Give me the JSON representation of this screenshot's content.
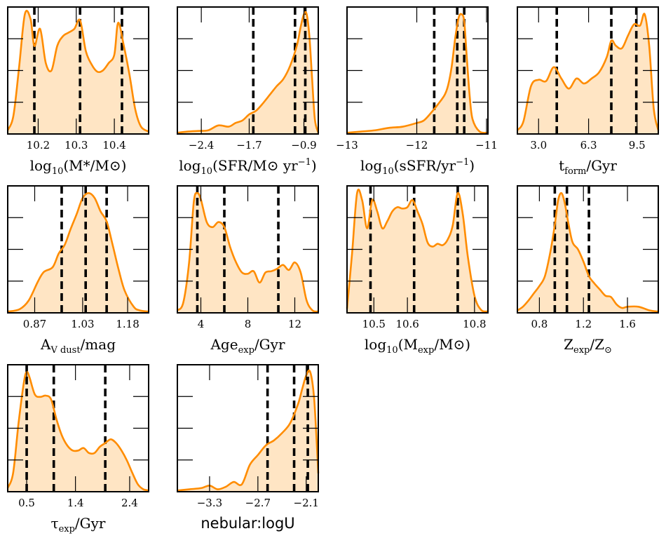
{
  "chart_data": [
    {
      "type": "area",
      "xlabel": "log10(M*/M⊙)",
      "xlabel_parts": {
        "pre": "log",
        "sub": "10",
        "post": "(M*/M⊙)"
      },
      "xlim": [
        10.12,
        10.49
      ],
      "xticks": [
        "10.2",
        "10.3",
        "10.4"
      ],
      "percentiles": [
        10.19,
        10.31,
        10.42
      ],
      "x": [
        10.12,
        10.135,
        10.15,
        10.165,
        10.18,
        10.19,
        10.205,
        10.22,
        10.235,
        10.25,
        10.265,
        10.28,
        10.295,
        10.31,
        10.325,
        10.34,
        10.355,
        10.37,
        10.385,
        10.4,
        10.41,
        10.425,
        10.44,
        10.455,
        10.47,
        10.49
      ],
      "y": [
        0.03,
        0.15,
        0.55,
        0.98,
        0.94,
        0.72,
        0.86,
        0.58,
        0.52,
        0.72,
        0.8,
        0.83,
        0.86,
        0.93,
        0.68,
        0.57,
        0.51,
        0.52,
        0.58,
        0.65,
        0.91,
        0.72,
        0.48,
        0.2,
        0.06,
        0.02
      ]
    },
    {
      "type": "area",
      "xlabel": "log10(SFR/M⊙ yr−1)",
      "xlabel_parts": {
        "pre": "log",
        "sub": "10",
        "post": "(SFR/M⊙ yr",
        "sup": "−1",
        "end": ")"
      },
      "xlim": [
        -2.75,
        -0.69
      ],
      "xticks": [
        "−2.4",
        "−1.7",
        "−0.9"
      ],
      "percentiles": [
        -1.64,
        -1.03,
        -0.88
      ],
      "x": [
        -2.75,
        -2.6,
        -2.45,
        -2.3,
        -2.15,
        -2.0,
        -1.9,
        -1.8,
        -1.7,
        -1.6,
        -1.5,
        -1.4,
        -1.3,
        -1.2,
        -1.1,
        -1.0,
        -0.95,
        -0.9,
        -0.86,
        -0.82,
        -0.78,
        -0.74,
        -0.69
      ],
      "y": [
        0.01,
        0.02,
        0.025,
        0.03,
        0.07,
        0.06,
        0.09,
        0.11,
        0.16,
        0.19,
        0.25,
        0.32,
        0.39,
        0.45,
        0.56,
        0.73,
        0.87,
        0.98,
        0.98,
        0.8,
        0.45,
        0.12,
        0.01
      ]
    },
    {
      "type": "area",
      "xlabel": "log10(sSFR/yr−1)",
      "xlabel_parts": {
        "pre": "log",
        "sub": "10",
        "post": "(sSFR/yr",
        "sup": "−1",
        "end": ")"
      },
      "xlim": [
        -13.0,
        -10.98
      ],
      "xticks": [
        "−13",
        "−12",
        "−11"
      ],
      "percentiles": [
        -11.75,
        -11.42,
        -11.32
      ],
      "x": [
        -13.0,
        -12.8,
        -12.6,
        -12.4,
        -12.2,
        -12.0,
        -11.9,
        -11.8,
        -11.7,
        -11.6,
        -11.55,
        -11.5,
        -11.45,
        -11.4,
        -11.36,
        -11.32,
        -11.28,
        -11.24,
        -11.2,
        -11.1,
        -10.98
      ],
      "y": [
        0.01,
        0.02,
        0.03,
        0.05,
        0.06,
        0.09,
        0.11,
        0.17,
        0.24,
        0.32,
        0.4,
        0.55,
        0.78,
        0.95,
        0.98,
        0.92,
        0.6,
        0.3,
        0.12,
        0.02,
        0.01
      ]
    },
    {
      "type": "area",
      "xlabel": "tform/Gyr",
      "xlabel_parts": {
        "pre": "t",
        "sub": "form",
        "post": "/Gyr"
      },
      "xlim": [
        1.6,
        10.9
      ],
      "xticks": [
        "3.0",
        "6.3",
        "9.5"
      ],
      "percentiles": [
        4.2,
        7.8,
        9.45
      ],
      "x": [
        1.6,
        2.0,
        2.5,
        3.0,
        3.5,
        4.0,
        4.5,
        5.0,
        5.5,
        6.0,
        6.5,
        7.0,
        7.5,
        7.8,
        8.1,
        8.5,
        8.9,
        9.3,
        9.7,
        10.0,
        10.3,
        10.6,
        10.9
      ],
      "y": [
        0.03,
        0.1,
        0.38,
        0.43,
        0.42,
        0.53,
        0.44,
        0.36,
        0.44,
        0.4,
        0.44,
        0.49,
        0.61,
        0.74,
        0.7,
        0.68,
        0.78,
        0.87,
        0.86,
        0.95,
        0.7,
        0.2,
        0.03
      ]
    },
    {
      "type": "area",
      "xlabel": "AV dust/mag",
      "xlabel_parts": {
        "pre": "A",
        "sub": "V dust",
        "post": "/mag"
      },
      "xlim": [
        0.78,
        1.25
      ],
      "xticks": [
        "0.87",
        "1.03",
        "1.18"
      ],
      "percentiles": [
        0.96,
        1.04,
        1.11
      ],
      "x": [
        0.78,
        0.82,
        0.85,
        0.88,
        0.9,
        0.93,
        0.95,
        0.97,
        0.99,
        1.01,
        1.03,
        1.05,
        1.07,
        1.09,
        1.11,
        1.13,
        1.15,
        1.17,
        1.2,
        1.22,
        1.25
      ],
      "y": [
        0.01,
        0.03,
        0.1,
        0.25,
        0.33,
        0.37,
        0.48,
        0.55,
        0.68,
        0.8,
        0.93,
        0.97,
        0.93,
        0.82,
        0.74,
        0.55,
        0.35,
        0.18,
        0.05,
        0.02,
        0.01
      ]
    },
    {
      "type": "area",
      "xlabel": "Ageexp/Gyr",
      "xlabel_parts": {
        "pre": "Age",
        "sub": "exp",
        "post": "/Gyr"
      },
      "xlim": [
        2.0,
        14.0
      ],
      "xticks": [
        "4",
        "8",
        "12"
      ],
      "percentiles": [
        3.7,
        6.0,
        10.6
      ],
      "x": [
        2.0,
        2.5,
        3.0,
        3.4,
        3.7,
        4.0,
        4.5,
        5.0,
        5.5,
        6.0,
        6.5,
        7.0,
        7.5,
        8.0,
        8.5,
        9.0,
        9.5,
        10.0,
        10.5,
        11.0,
        11.5,
        12.0,
        12.5,
        13.0,
        13.5,
        14.0
      ],
      "y": [
        0.02,
        0.08,
        0.4,
        0.88,
        0.95,
        0.9,
        0.72,
        0.68,
        0.72,
        0.68,
        0.52,
        0.4,
        0.32,
        0.31,
        0.33,
        0.24,
        0.32,
        0.33,
        0.35,
        0.38,
        0.34,
        0.4,
        0.32,
        0.1,
        0.02,
        0.01
      ]
    },
    {
      "type": "area",
      "xlabel": "log10(Mexp/M⊙)",
      "xlabel_parts": {
        "pre": "log",
        "sub": "10",
        "post": "(M",
        "sub2": "exp",
        "end": "/M⊙)"
      },
      "xlim": [
        10.42,
        10.84
      ],
      "xticks": [
        "10.5",
        "10.6",
        "10.8"
      ],
      "percentiles": [
        10.49,
        10.62,
        10.75
      ],
      "x": [
        10.42,
        10.435,
        10.45,
        10.465,
        10.48,
        10.495,
        10.51,
        10.525,
        10.54,
        10.555,
        10.57,
        10.585,
        10.6,
        10.615,
        10.63,
        10.645,
        10.66,
        10.675,
        10.69,
        10.705,
        10.72,
        10.735,
        10.75,
        10.765,
        10.78,
        10.8,
        10.82,
        10.84
      ],
      "y": [
        0.03,
        0.42,
        0.85,
        0.8,
        0.6,
        0.8,
        0.72,
        0.6,
        0.65,
        0.72,
        0.75,
        0.74,
        0.75,
        0.8,
        0.72,
        0.63,
        0.5,
        0.47,
        0.49,
        0.48,
        0.52,
        0.62,
        0.85,
        0.7,
        0.4,
        0.12,
        0.02,
        0.01
      ]
    },
    {
      "type": "area",
      "xlabel": "Zexp/Z⊙",
      "xlabel_parts": {
        "pre": "Z",
        "sub": "exp",
        "post": "/Z",
        "sub2": "⊙"
      },
      "xlim": [
        0.6,
        1.88
      ],
      "xticks": [
        "0.8",
        "1.2",
        "1.6"
      ],
      "percentiles": [
        0.94,
        1.05,
        1.25
      ],
      "x": [
        0.6,
        0.65,
        0.7,
        0.75,
        0.8,
        0.85,
        0.9,
        0.94,
        0.97,
        1.0,
        1.03,
        1.06,
        1.1,
        1.15,
        1.2,
        1.25,
        1.3,
        1.35,
        1.4,
        1.45,
        1.5,
        1.55,
        1.6,
        1.7,
        1.8,
        1.88
      ],
      "y": [
        0.02,
        0.05,
        0.1,
        0.16,
        0.22,
        0.3,
        0.5,
        0.72,
        0.92,
        0.98,
        0.9,
        0.75,
        0.58,
        0.52,
        0.42,
        0.3,
        0.24,
        0.19,
        0.14,
        0.13,
        0.07,
        0.04,
        0.05,
        0.05,
        0.02,
        0.01
      ]
    },
    {
      "type": "area",
      "xlabel": "τexp/Gyr",
      "xlabel_parts": {
        "pre": "τ",
        "sub": "exp",
        "post": "/Gyr"
      },
      "xlim": [
        0.15,
        2.75
      ],
      "xticks": [
        "0.5",
        "1.4",
        "2.4"
      ],
      "percentiles": [
        0.5,
        1.0,
        1.95
      ],
      "x": [
        0.15,
        0.25,
        0.35,
        0.45,
        0.5,
        0.55,
        0.65,
        0.75,
        0.85,
        0.95,
        1.05,
        1.15,
        1.25,
        1.35,
        1.45,
        1.55,
        1.65,
        1.75,
        1.85,
        1.95,
        2.05,
        2.15,
        2.25,
        2.35,
        2.45,
        2.55,
        2.65,
        2.75
      ],
      "y": [
        0.03,
        0.15,
        0.55,
        0.88,
        0.96,
        0.92,
        0.78,
        0.76,
        0.77,
        0.74,
        0.58,
        0.45,
        0.37,
        0.33,
        0.33,
        0.35,
        0.31,
        0.31,
        0.36,
        0.39,
        0.42,
        0.39,
        0.33,
        0.25,
        0.15,
        0.06,
        0.02,
        0.01
      ]
    },
    {
      "type": "area",
      "xlabel": "nebular:logU",
      "xlabel_parts": {
        "pre": "nebular:logU"
      },
      "xlim": [
        -3.7,
        -1.95
      ],
      "xticks": [
        "−3.3",
        "−2.7",
        "−2.1"
      ],
      "percentiles": [
        -2.58,
        -2.25,
        -2.08
      ],
      "x": [
        -3.7,
        -3.55,
        -3.4,
        -3.3,
        -3.2,
        -3.1,
        -3.0,
        -2.9,
        -2.8,
        -2.7,
        -2.6,
        -2.5,
        -2.4,
        -2.3,
        -2.2,
        -2.15,
        -2.1,
        -2.05,
        -2.0,
        -1.95
      ],
      "y": [
        0.01,
        0.02,
        0.03,
        0.05,
        0.02,
        0.04,
        0.08,
        0.06,
        0.22,
        0.3,
        0.38,
        0.42,
        0.48,
        0.56,
        0.72,
        0.84,
        0.95,
        0.98,
        0.75,
        0.15
      ]
    }
  ]
}
